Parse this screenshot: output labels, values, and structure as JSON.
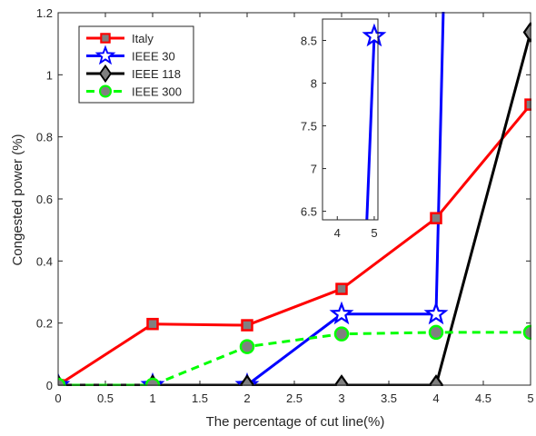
{
  "chart_data": {
    "type": "line",
    "xlabel": "The percentage of cut line(%)",
    "ylabel": "Congested power (%)",
    "xlim": [
      0,
      5
    ],
    "ylim": [
      0,
      1.2
    ],
    "x_ticks": [
      "0",
      "0.5",
      "1",
      "1.5",
      "2",
      "2.5",
      "3",
      "3.5",
      "4",
      "4.5",
      "5"
    ],
    "y_ticks": [
      "0",
      "0.2",
      "0.4",
      "0.6",
      "0.8",
      "1",
      "1.2"
    ],
    "grid": false,
    "legend_position": "top-left",
    "series": [
      {
        "name": "Italy",
        "color": "#ff0000",
        "marker": "square",
        "marker_fill": "#808080",
        "line_style": "solid",
        "x": [
          0,
          1,
          2,
          3,
          4,
          5
        ],
        "y": [
          0,
          0.197,
          0.193,
          0.31,
          0.538,
          0.904
        ]
      },
      {
        "name": "IEEE 30",
        "color": "#0000ff",
        "marker": "star",
        "marker_fill": "#ffffff",
        "line_style": "solid",
        "x": [
          0,
          1,
          2,
          3,
          4,
          4.08
        ],
        "y": [
          0,
          0,
          0,
          0.229,
          0.229,
          1.25
        ]
      },
      {
        "name": "IEEE 118",
        "color": "#000000",
        "marker": "diamond",
        "marker_fill": "#808080",
        "line_style": "solid",
        "x": [
          0,
          1,
          2,
          3,
          4,
          5
        ],
        "y": [
          0,
          0,
          0,
          0,
          0,
          1.137
        ]
      },
      {
        "name": "IEEE 300",
        "color": "#00ff00",
        "marker": "circle",
        "marker_fill": "#808080",
        "line_style": "dashed",
        "x": [
          0,
          1,
          2,
          3,
          4,
          5
        ],
        "y": [
          0,
          0,
          0.124,
          0.165,
          0.17,
          0.17
        ]
      }
    ],
    "inset": {
      "xlim": [
        3.6,
        5.1
      ],
      "ylim": [
        6.4,
        8.75
      ],
      "x_ticks": [
        "4",
        "5"
      ],
      "y_ticks": [
        "6.5",
        "7",
        "7.5",
        "8",
        "8.5"
      ],
      "series": [
        {
          "color": "#0000ff",
          "marker": "star",
          "x": [
            4.8,
            5
          ],
          "y": [
            6.4,
            8.55
          ]
        }
      ]
    }
  }
}
